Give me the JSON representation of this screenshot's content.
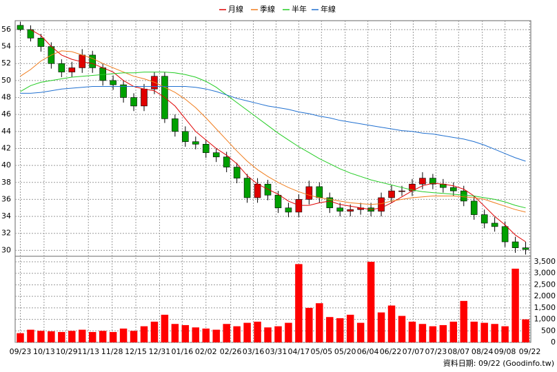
{
  "chart_data": {
    "type": "candlestick",
    "source": "資料日期: 09/22 (Goodinfo.tw)",
    "x": [
      0,
      1,
      2,
      3,
      4,
      5,
      6,
      7,
      8,
      9,
      10,
      11,
      12,
      13,
      14,
      15,
      16,
      17,
      18,
      19,
      20,
      21,
      22,
      23,
      24,
      25,
      26,
      27,
      28,
      29,
      30,
      31,
      32,
      33,
      34,
      35,
      36,
      37,
      38,
      39,
      40,
      41,
      42,
      43,
      44,
      45,
      46,
      47,
      48,
      49
    ],
    "xlim": [
      -0.5,
      49.5
    ],
    "xticks": [
      {
        "value": 0,
        "label": "09/23"
      },
      {
        "value": 2.3,
        "label": "10/13"
      },
      {
        "value": 4.5,
        "label": "10/29"
      },
      {
        "value": 6.6,
        "label": "11/13"
      },
      {
        "value": 8.9,
        "label": "11/28"
      },
      {
        "value": 11.2,
        "label": "12/15"
      },
      {
        "value": 13.5,
        "label": "12/31"
      },
      {
        "value": 15.7,
        "label": "01/16"
      },
      {
        "value": 18,
        "label": "02/02"
      },
      {
        "value": 20.4,
        "label": "02/26"
      },
      {
        "value": 22.6,
        "label": "03/16"
      },
      {
        "value": 24.8,
        "label": "03/31"
      },
      {
        "value": 27,
        "label": "04/17"
      },
      {
        "value": 29.2,
        "label": "05/05"
      },
      {
        "value": 31.5,
        "label": "05/20"
      },
      {
        "value": 33.7,
        "label": "06/04"
      },
      {
        "value": 35.9,
        "label": "06/22"
      },
      {
        "value": 38.1,
        "label": "07/07"
      },
      {
        "value": 40.3,
        "label": "07/23"
      },
      {
        "value": 42.5,
        "label": "08/07"
      },
      {
        "value": 44.8,
        "label": "08/24"
      },
      {
        "value": 47,
        "label": "09/08"
      },
      {
        "value": 49.4,
        "label": "09/22"
      }
    ],
    "ylim": [
      29.3,
      57.05
    ],
    "yticks": [
      30,
      32,
      34,
      36,
      38,
      40,
      42,
      44,
      46,
      48,
      50,
      52,
      54,
      56
    ],
    "grid": true,
    "candles": {
      "up_color": "#e00000",
      "down_color": "#00a000",
      "open": [
        56.5,
        56,
        55,
        54,
        52,
        51,
        51.5,
        53,
        51.5,
        50,
        49.5,
        48,
        47,
        49,
        50.5,
        45.5,
        44,
        42.8,
        42.5,
        41.5,
        41,
        39.8,
        38.5,
        36.2,
        37.8,
        36.5,
        35,
        34.5,
        36,
        37.5,
        36.2,
        35,
        34.6,
        34.8,
        35,
        34.6,
        36.2,
        37,
        37,
        37.8,
        38.5,
        37.8,
        37.4,
        37,
        35.8,
        34.2,
        33.2,
        32.8,
        31,
        30.3
      ],
      "high": [
        56.9,
        56.5,
        55.5,
        54.5,
        52.5,
        52.2,
        53.7,
        53.5,
        52,
        50.6,
        50,
        48.5,
        49.6,
        51,
        51,
        46,
        44.6,
        43.4,
        43,
        42,
        41.6,
        40.3,
        39,
        38.5,
        38.3,
        37,
        35.6,
        36.6,
        38.2,
        38,
        36.8,
        35.6,
        35.4,
        35.6,
        35.6,
        36.8,
        37.7,
        37.6,
        38.4,
        39.2,
        39,
        38.4,
        38,
        37.6,
        36.4,
        34.8,
        33.9,
        33.4,
        31.6,
        31
      ],
      "low": [
        55.8,
        54.6,
        53.4,
        51.4,
        50.4,
        50.4,
        50.9,
        50.9,
        49.4,
        48.9,
        47.4,
        46.4,
        46.4,
        48.4,
        45,
        43.4,
        42.2,
        41.9,
        40.9,
        40.4,
        39.2,
        37.9,
        35.6,
        35.6,
        35.9,
        34.4,
        33.9,
        33.9,
        35.4,
        35.6,
        34.4,
        34,
        34,
        34.2,
        34,
        34,
        35.6,
        36.4,
        36.4,
        37.2,
        37.2,
        36.8,
        36.4,
        35.2,
        33.6,
        32.6,
        32.2,
        30.4,
        29.7,
        29.5
      ],
      "close": [
        56,
        55,
        54,
        52,
        51,
        51.5,
        53,
        51.5,
        50,
        49.5,
        48,
        47,
        49,
        50.5,
        45.5,
        44,
        42.8,
        42.5,
        41.5,
        41,
        39.8,
        38.5,
        36.2,
        37.8,
        36.5,
        35,
        34.5,
        36,
        37.5,
        36.2,
        35,
        34.6,
        34.8,
        35,
        34.6,
        36.2,
        37,
        37,
        37.8,
        38.5,
        37.8,
        37.4,
        37,
        35.8,
        34.2,
        33.2,
        32.8,
        31,
        30.3,
        30.1
      ]
    },
    "series": [
      {
        "name": "月線",
        "color": "#e00000",
        "values": [
          null,
          56,
          55.3,
          54,
          53,
          52.5,
          52.2,
          52,
          51.5,
          51,
          50,
          49.3,
          49,
          48.8,
          48,
          47,
          45.5,
          44,
          43,
          42,
          41.2,
          40.2,
          38.8,
          37.8,
          37.2,
          36.6,
          35.8,
          35.3,
          35.3,
          35.6,
          35.8,
          35.4,
          35.2,
          35,
          34.8,
          35,
          35.6,
          36.3,
          37,
          37.6,
          37.9,
          37.8,
          37.6,
          37.2,
          36.4,
          35.2,
          34,
          33,
          31.8,
          31
        ]
      },
      {
        "name": "季線",
        "color": "#f07c1c",
        "values": [
          50.5,
          51.3,
          52.3,
          53,
          53.5,
          53.4,
          53,
          52.6,
          52,
          51.5,
          51,
          50.5,
          50.2,
          49.8,
          49.2,
          48.6,
          47.8,
          46.8,
          45.6,
          44.3,
          43,
          41.7,
          40.5,
          39.5,
          38.7,
          38,
          37.4,
          36.9,
          36.5,
          36.2,
          36,
          35.8,
          35.6,
          35.5,
          35.4,
          35.5,
          35.8,
          36,
          36.2,
          36.3,
          36.4,
          36.4,
          36.4,
          36.3,
          36.2,
          36,
          35.6,
          35.2,
          34.8,
          34.5
        ]
      },
      {
        "name": "半年",
        "color": "#22cc22",
        "values": [
          48.7,
          49.4,
          49.8,
          50,
          50.2,
          50.4,
          50.5,
          50.6,
          50.7,
          50.8,
          50.9,
          50.9,
          51,
          51,
          51,
          50.9,
          50.7,
          50.4,
          49.9,
          49.2,
          48.3,
          47.4,
          46.5,
          45.6,
          44.7,
          43.8,
          43,
          42.2,
          41.5,
          40.8,
          40.2,
          39.6,
          39.1,
          38.7,
          38.3,
          38,
          37.7,
          37.4,
          37.1,
          36.9,
          36.8,
          36.7,
          36.6,
          36.5,
          36.4,
          36.2,
          36,
          35.7,
          35.3,
          35
        ]
      },
      {
        "name": "年線",
        "color": "#1f6fd0",
        "values": [
          48.5,
          48.5,
          48.6,
          48.8,
          49,
          49.1,
          49.2,
          49.3,
          49.3,
          49.3,
          49.3,
          49.3,
          49.3,
          49.3,
          49.3,
          49.3,
          49.3,
          49.2,
          49,
          48.7,
          48.3,
          47.9,
          47.6,
          47.3,
          47,
          46.8,
          46.6,
          46.3,
          46.1,
          45.8,
          45.6,
          45.3,
          45.1,
          44.9,
          44.7,
          44.5,
          44.3,
          44.1,
          44,
          43.8,
          43.7,
          43.5,
          43.3,
          43.1,
          42.8,
          42.4,
          41.9,
          41.4,
          40.9,
          40.5
        ]
      }
    ],
    "volume": {
      "color": "#ff0000",
      "ylim": [
        0,
        3650
      ],
      "yticks": [
        0,
        500,
        {
          "value": 1000,
          "label": "1,000"
        },
        {
          "value": 1500,
          "label": "1,500"
        },
        {
          "value": 2000,
          "label": "2,000"
        },
        {
          "value": 2500,
          "label": "2,500"
        },
        {
          "value": 3000,
          "label": "3,000"
        },
        {
          "value": 3500,
          "label": "3,500"
        }
      ],
      "values": [
        400,
        550,
        500,
        480,
        450,
        500,
        550,
        450,
        500,
        450,
        600,
        500,
        700,
        900,
        1200,
        800,
        750,
        650,
        600,
        550,
        800,
        700,
        850,
        900,
        650,
        700,
        850,
        3400,
        1500,
        1700,
        1100,
        1050,
        1200,
        850,
        3500,
        1300,
        1600,
        1150,
        900,
        800,
        700,
        750,
        900,
        1800,
        900,
        850,
        800,
        700,
        3200,
        1000
      ]
    }
  }
}
